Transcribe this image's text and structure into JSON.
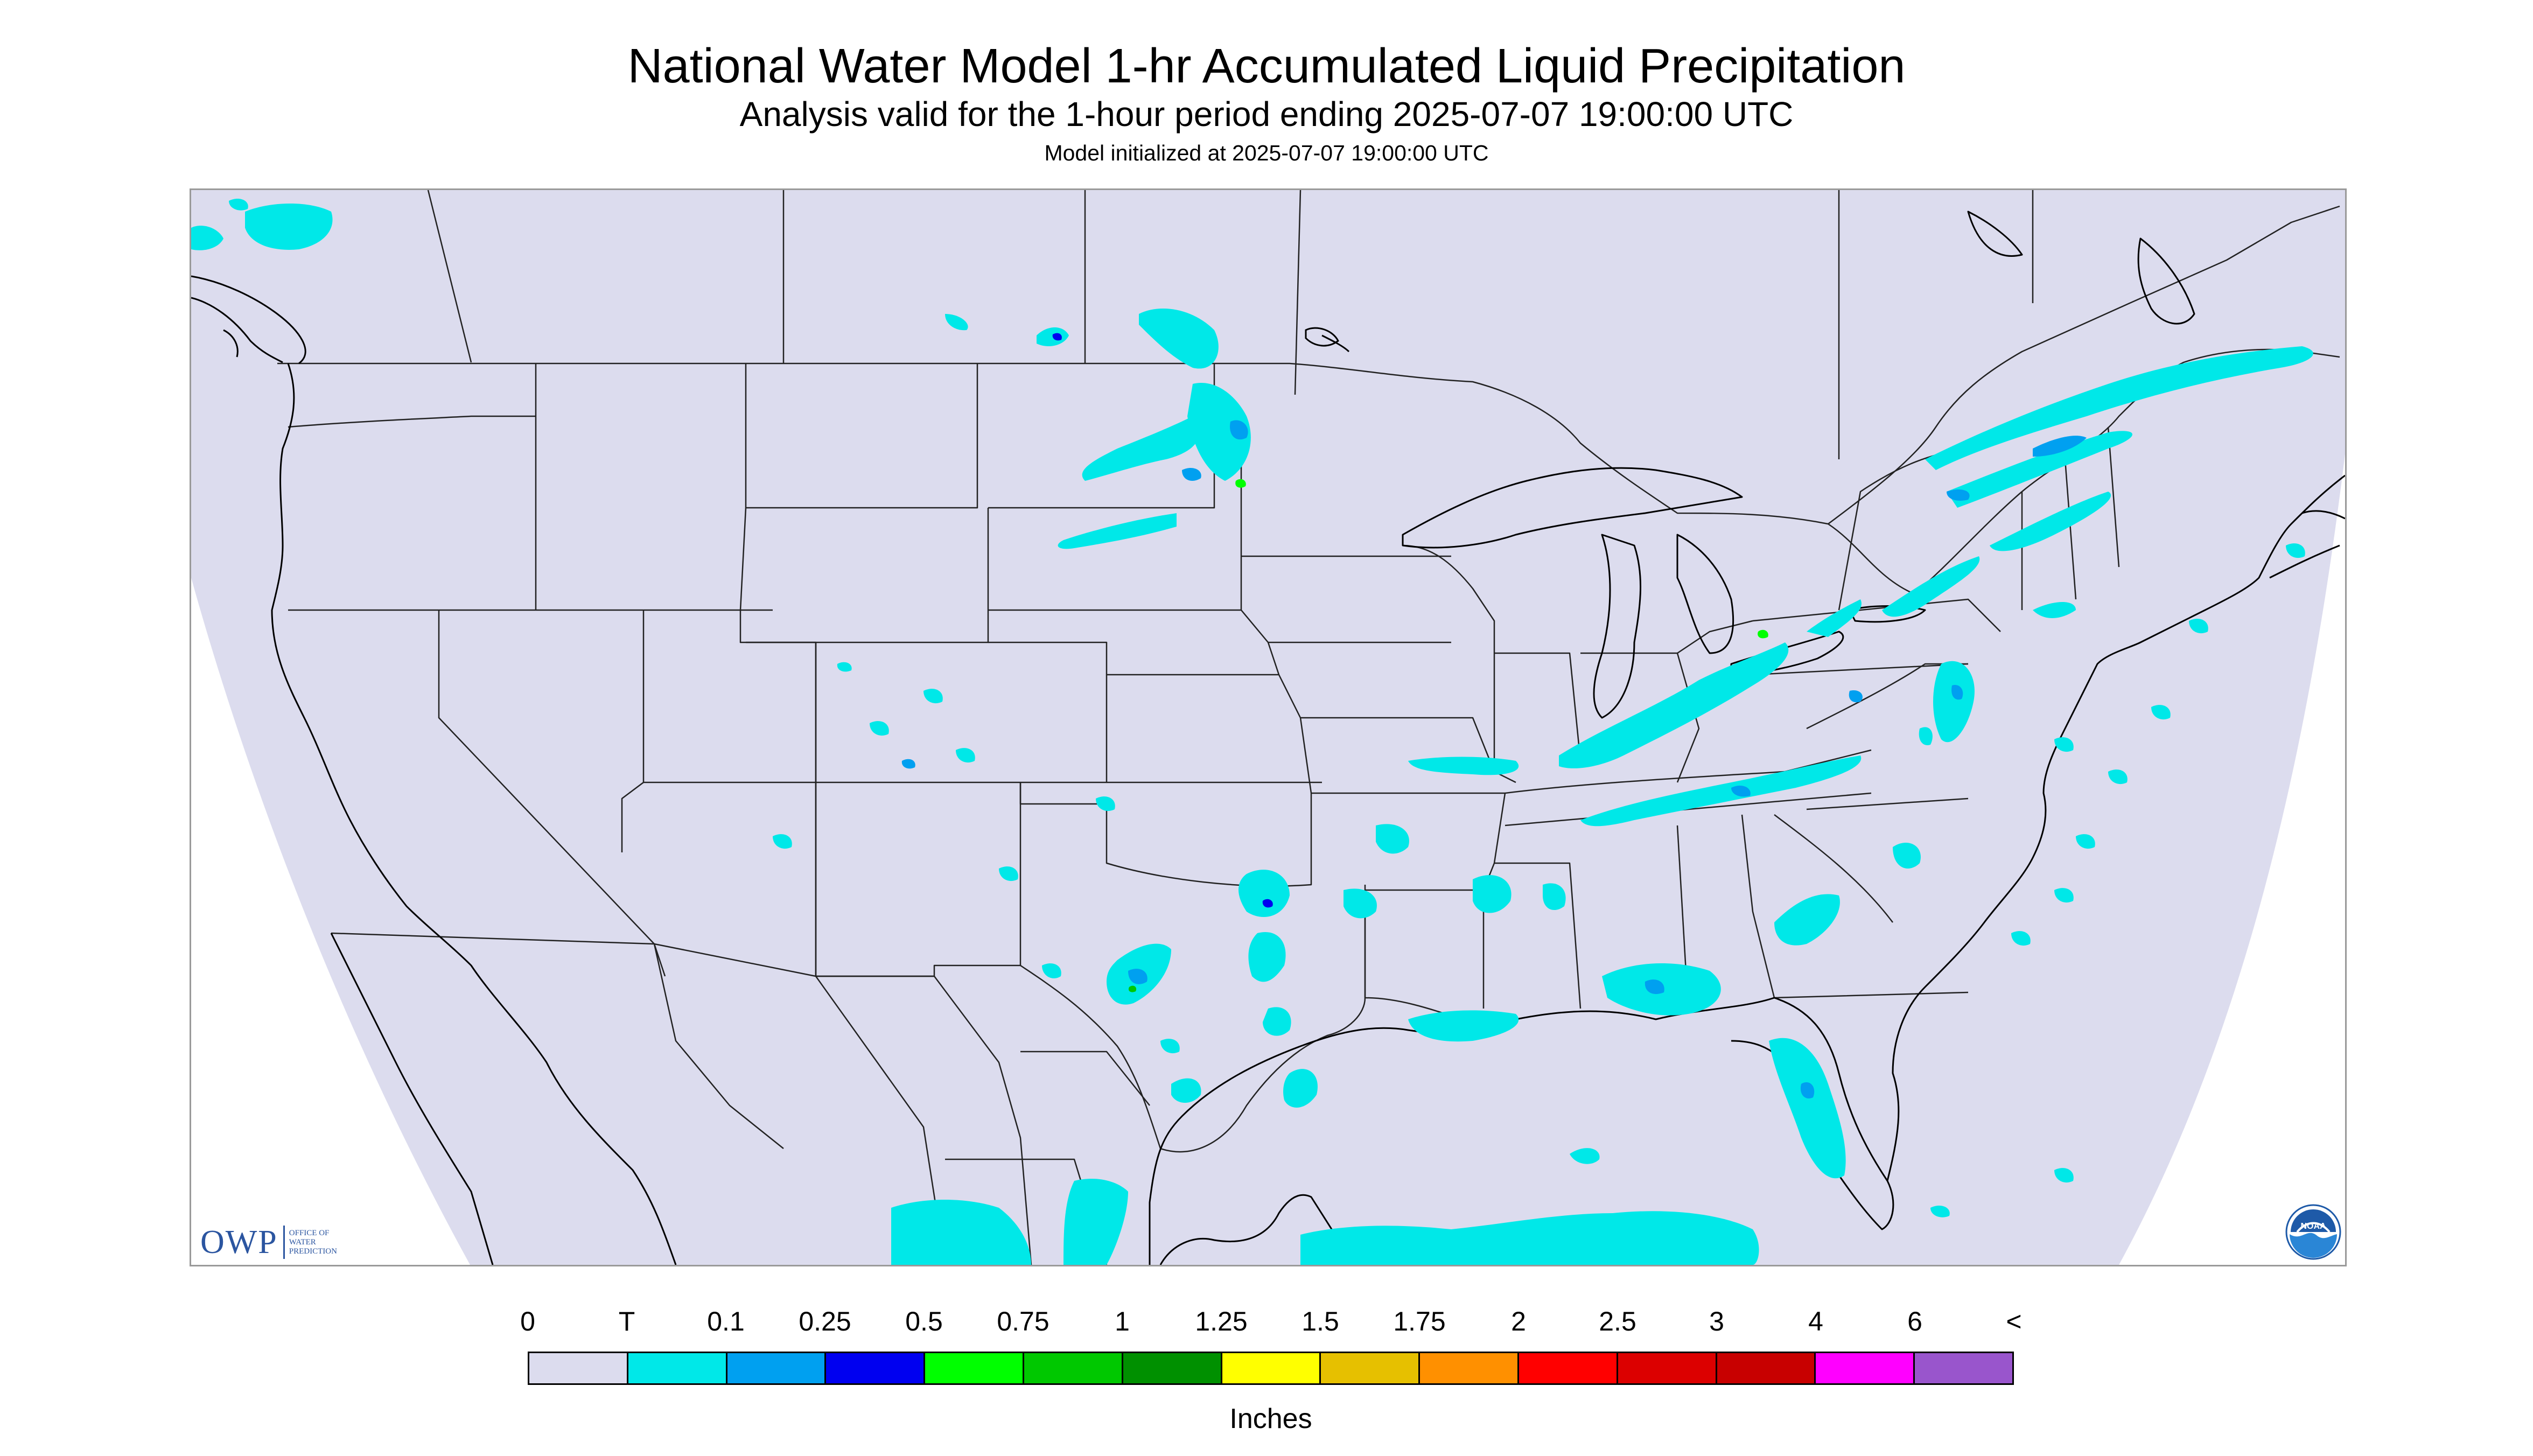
{
  "header": {
    "title": "National Water Model 1-hr Accumulated Liquid Precipitation",
    "subtitle": "Analysis valid for the 1-hour period ending 2025-07-07 19:00:00 UTC",
    "init_line": "Model initialized at 2025-07-07 19:00:00 UTC"
  },
  "map": {
    "background_color": "#dcdcee",
    "outside_domain_color": "#ffffff",
    "boundary_color": "#222222",
    "coastline_color": "#000000",
    "extent_note": "Continental United States with parts of southern Canada, northern Mexico, Gulf of Mexico and western Atlantic",
    "precip_regions": [
      {
        "name": "north-dakota-minnesota-band",
        "intensity": "0.25"
      },
      {
        "name": "great-lakes-ohio-valley-band",
        "intensity": "0.25"
      },
      {
        "name": "new-england-quebec-band",
        "intensity": "0.25"
      },
      {
        "name": "mid-atlantic-coast",
        "intensity": "0.25"
      },
      {
        "name": "texas-oklahoma-storms",
        "intensity": "0.75"
      },
      {
        "name": "southeast-gulf-coast",
        "intensity": "0.25"
      },
      {
        "name": "florida-peninsula",
        "intensity": "0.25"
      },
      {
        "name": "southwest-scattered",
        "intensity": "0.1"
      },
      {
        "name": "gulf-of-mexico-south-edge",
        "intensity": "T"
      }
    ]
  },
  "logos": {
    "owp": {
      "letters": "OWP",
      "line1": "OFFICE OF",
      "line2": "WATER",
      "line3": "PREDICTION",
      "color": "#2b55a0"
    },
    "noaa": {
      "text": "NOAA",
      "color": "#1e5aa8"
    }
  },
  "legend": {
    "labels": [
      "0",
      "T",
      "0.1",
      "0.25",
      "0.5",
      "0.75",
      "1",
      "1.25",
      "1.5",
      "1.75",
      "2",
      "2.5",
      "3",
      "4",
      "6",
      "<"
    ],
    "colors": [
      "#dcdcee",
      "#00e8e8",
      "#00a0f0",
      "#0000f0",
      "#00ff00",
      "#00c800",
      "#009000",
      "#ffff00",
      "#e6c000",
      "#ff9000",
      "#ff0000",
      "#dc0000",
      "#c80000",
      "#ff00ff",
      "#9955cc"
    ],
    "units": "Inches"
  }
}
